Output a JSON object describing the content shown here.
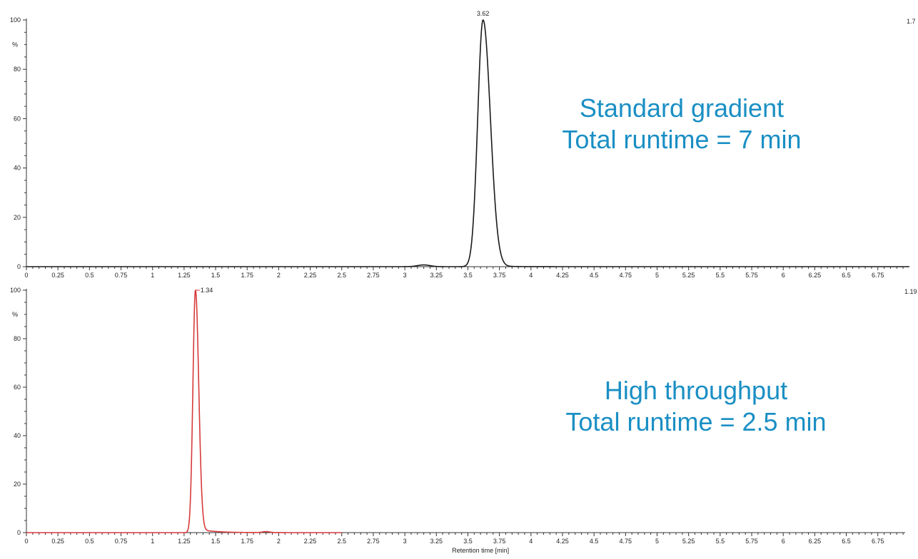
{
  "chart_data": [
    {
      "type": "line",
      "name": "Standard gradient",
      "color": "#1a1a1a",
      "x_ticks": [
        "0",
        "0.25",
        "0.5",
        "0.75",
        "1",
        "1.25",
        "1.5",
        "1.75",
        "2",
        "2.25",
        "2.5",
        "2.75",
        "3",
        "3.25",
        "3.5",
        "3.75",
        "4",
        "4.25",
        "4.5",
        "4.75",
        "5",
        "5.25",
        "5.5",
        "5.75",
        "6",
        "6.25",
        "6.5",
        "6.75"
      ],
      "y_ticks": [
        "0",
        "20",
        "40",
        "60",
        "80",
        "100"
      ],
      "y_unit": "%",
      "xlim": [
        0,
        7.0
      ],
      "ylim": [
        0,
        100
      ],
      "peak_label": "3.62",
      "corner_label": "1.7",
      "annotation": [
        "Standard gradient",
        "Total runtime = 7 min"
      ],
      "peaks": [
        {
          "center": 3.62,
          "height": 100,
          "sigma_left": 0.042,
          "sigma_right": 0.058,
          "tail": 0.5
        },
        {
          "center": 3.15,
          "height": 0.7,
          "sigma_left": 0.05,
          "sigma_right": 0.05,
          "tail": 0
        }
      ],
      "trace_range": [
        0,
        7.0
      ]
    },
    {
      "type": "line",
      "name": "High throughput",
      "color": "#d73a3a",
      "x_ticks": [
        "0",
        "0.25",
        "0.5",
        "0.75",
        "1",
        "1.25",
        "1.5",
        "1.75",
        "2",
        "2.25",
        "2.5",
        "2.75",
        "3",
        "3.25",
        "3.5",
        "3.75",
        "4",
        "4.25",
        "4.5",
        "4.75",
        "5",
        "5.25",
        "5.5",
        "5.75",
        "6",
        "6.25",
        "6.5",
        "6.75"
      ],
      "y_ticks": [
        "0",
        "20",
        "40",
        "60",
        "80",
        "100"
      ],
      "y_unit": "%",
      "xlim": [
        0,
        7.0
      ],
      "ylim": [
        0,
        100
      ],
      "xlabel": "Retention time [min]",
      "peak_label": "1.34",
      "corner_label": "1.19",
      "annotation": [
        "High throughput",
        "Total runtime = 2.5 min"
      ],
      "peaks": [
        {
          "center": 1.34,
          "height": 100,
          "sigma_left": 0.02,
          "sigma_right": 0.026,
          "tail": 1.8
        },
        {
          "center": 1.9,
          "height": 0.4,
          "sigma_left": 0.03,
          "sigma_right": 0.03,
          "tail": 0
        }
      ],
      "trace_range": [
        0,
        2.5
      ]
    }
  ]
}
